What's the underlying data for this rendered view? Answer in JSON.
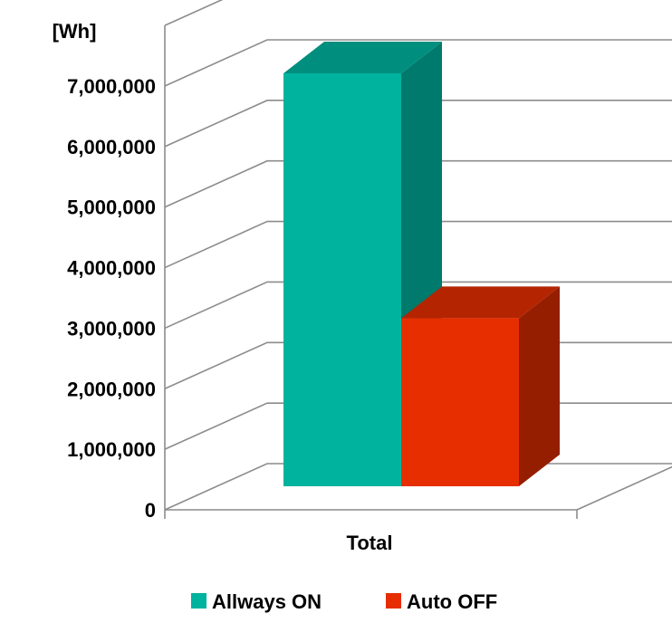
{
  "chart_data": {
    "type": "bar",
    "style": "3d-clustered-column",
    "unit_label": "[Wh]",
    "categories": [
      "Total"
    ],
    "series": [
      {
        "name": "Allways ON",
        "values": [
          7000000
        ],
        "color": "#00B39E",
        "side_color": "#007A6C",
        "top_color": "#008F7E"
      },
      {
        "name": "Auto OFF",
        "values": [
          2850000
        ],
        "color": "#E62E00",
        "side_color": "#951E00",
        "top_color": "#B52400"
      }
    ],
    "ylim": [
      0,
      7000000
    ],
    "yticks": [
      0,
      1000000,
      2000000,
      3000000,
      4000000,
      5000000,
      6000000,
      7000000
    ],
    "ytick_labels": [
      "0",
      "1,000,000",
      "2,000,000",
      "3,000,000",
      "4,000,000",
      "5,000,000",
      "6,000,000",
      "7,000,000"
    ],
    "grid": true,
    "legend_position": "bottom"
  }
}
